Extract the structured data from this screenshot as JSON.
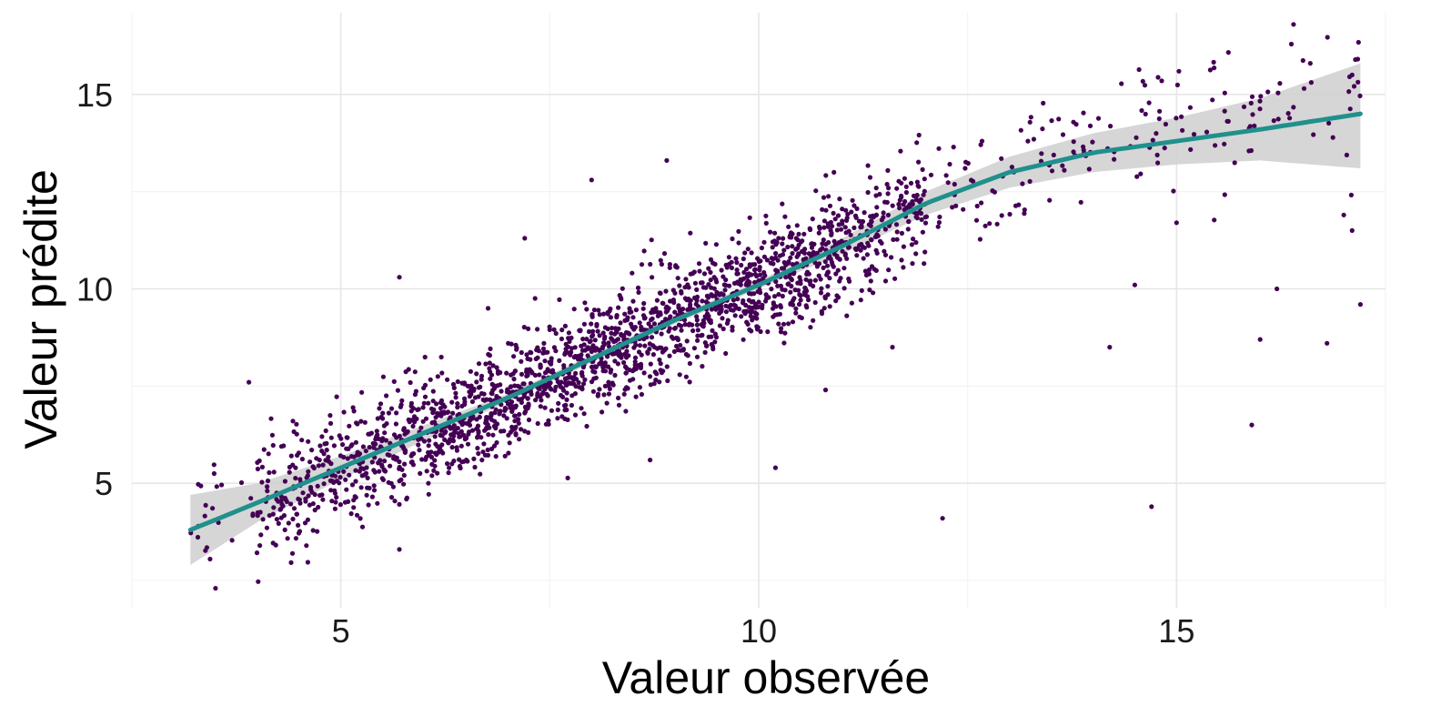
{
  "chart_data": {
    "type": "scatter",
    "title": "",
    "xlabel": "Valeur observée",
    "ylabel": "Valeur prédite",
    "xlim": [
      2.5,
      17.5
    ],
    "ylim": [
      1.8,
      17.1
    ],
    "x_ticks": [
      5,
      10,
      15
    ],
    "y_ticks": [
      5,
      10,
      15
    ],
    "x_tick_labels": [
      "5",
      "10",
      "15"
    ],
    "y_tick_labels": [
      "5",
      "10",
      "15"
    ],
    "grid": true,
    "legend": "none",
    "point_color": "#440154",
    "trend_color": "#21908C",
    "band_color": "#cfcfcf",
    "trend": {
      "x": [
        3.2,
        4,
        5,
        6,
        7,
        8,
        9,
        10,
        11,
        12,
        13,
        14,
        15,
        16,
        17.2
      ],
      "y": [
        3.8,
        4.5,
        5.4,
        6.3,
        7.2,
        8.2,
        9.2,
        10.1,
        11.1,
        12.2,
        13.0,
        13.5,
        13.8,
        14.1,
        14.5
      ],
      "lower": [
        2.9,
        4.0,
        5.1,
        6.1,
        7.1,
        8.1,
        9.1,
        10.0,
        10.9,
        11.9,
        12.6,
        13.0,
        13.2,
        13.3,
        13.1
      ],
      "upper": [
        4.7,
        5.0,
        5.7,
        6.5,
        7.3,
        8.3,
        9.3,
        10.2,
        11.3,
        12.5,
        13.4,
        14.0,
        14.4,
        14.9,
        15.8
      ]
    },
    "points_summary": {
      "n": 2200,
      "x_range": [
        3.2,
        17.2
      ],
      "spread": 0.8
    },
    "outliers": [
      {
        "x": 3.5,
        "y": 2.3
      },
      {
        "x": 3.9,
        "y": 7.6
      },
      {
        "x": 5.7,
        "y": 10.3
      },
      {
        "x": 5.7,
        "y": 3.3
      },
      {
        "x": 7.2,
        "y": 11.3
      },
      {
        "x": 8.0,
        "y": 12.8
      },
      {
        "x": 8.7,
        "y": 5.6
      },
      {
        "x": 8.9,
        "y": 13.3
      },
      {
        "x": 10.2,
        "y": 5.4
      },
      {
        "x": 10.8,
        "y": 7.4
      },
      {
        "x": 11.6,
        "y": 8.5
      },
      {
        "x": 12.2,
        "y": 4.1
      },
      {
        "x": 14.2,
        "y": 8.5
      },
      {
        "x": 14.5,
        "y": 10.1
      },
      {
        "x": 14.7,
        "y": 4.4
      },
      {
        "x": 15.0,
        "y": 11.7
      },
      {
        "x": 15.9,
        "y": 6.5
      },
      {
        "x": 16.0,
        "y": 8.7
      },
      {
        "x": 16.2,
        "y": 10.0
      },
      {
        "x": 16.4,
        "y": 16.8
      },
      {
        "x": 16.8,
        "y": 8.6
      },
      {
        "x": 17.0,
        "y": 11.9
      },
      {
        "x": 17.1,
        "y": 11.5
      },
      {
        "x": 17.2,
        "y": 9.6
      },
      {
        "x": 16.6,
        "y": 15.8
      },
      {
        "x": 17.1,
        "y": 15.5
      }
    ]
  }
}
